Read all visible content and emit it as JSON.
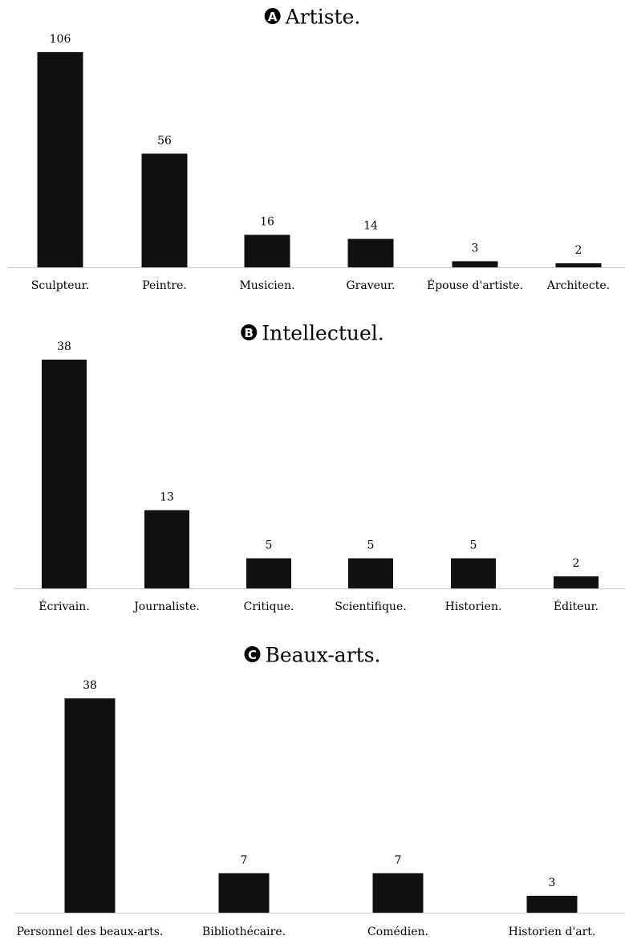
{
  "chart_data": [
    {
      "type": "bar",
      "badge": "A",
      "title": "Artiste.",
      "categories": [
        "Sculpteur.",
        "Peintre.",
        "Musicien.",
        "Graveur.",
        "Épouse d'artiste.",
        "Architecte."
      ],
      "values": [
        106,
        56,
        16,
        14,
        3,
        2
      ],
      "data_labels": [
        "106",
        "56",
        "16",
        "14",
        "3",
        "2"
      ],
      "xlabel": "",
      "ylabel": "",
      "ylim": [
        0,
        106
      ],
      "grid": false,
      "legend": "none",
      "bar_color": "#111111"
    },
    {
      "type": "bar",
      "badge": "B",
      "title": "Intellectuel.",
      "categories": [
        "Écrivain.",
        "Journaliste.",
        "Critique.",
        "Scientifique.",
        "Historien.",
        "Éditeur."
      ],
      "values": [
        38,
        13,
        5,
        5,
        5,
        2
      ],
      "data_labels": [
        "38",
        "13",
        "5",
        "5",
        "5",
        "2"
      ],
      "xlabel": "",
      "ylabel": "",
      "ylim": [
        0,
        38
      ],
      "grid": false,
      "legend": "none",
      "bar_color": "#111111"
    },
    {
      "type": "bar",
      "badge": "C",
      "title": "Beaux-arts.",
      "categories": [
        "Personnel des beaux-arts.",
        "Bibliothécaire.",
        "Comédien.",
        "Historien d'art."
      ],
      "values": [
        38,
        7,
        7,
        3
      ],
      "data_labels": [
        "38",
        "7",
        "7",
        "3"
      ],
      "xlabel": "",
      "ylabel": "",
      "ylim": [
        0,
        38
      ],
      "grid": false,
      "legend": "none",
      "bar_color": "#111111"
    }
  ],
  "colors": {
    "bars": "#111111",
    "axis": "#cccccc",
    "badge_bg": "#000000",
    "badge_text": "#ffffff",
    "text": "#000000"
  }
}
